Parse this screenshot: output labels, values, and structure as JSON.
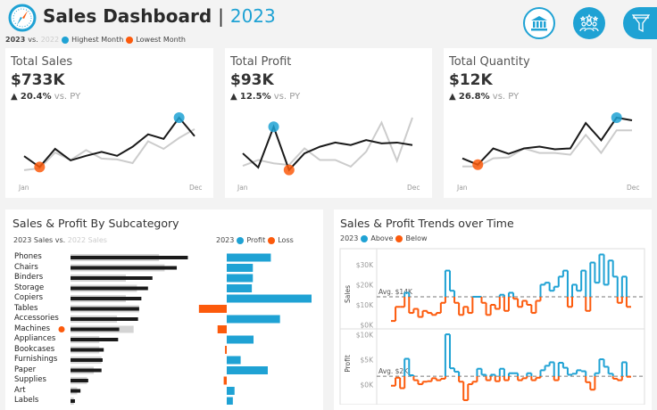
{
  "header": {
    "title": "Sales Dashboard",
    "separator": "|",
    "year": "2023"
  },
  "legend": {
    "current": "2023",
    "vs": "vs.",
    "previous": "2022",
    "highest": "Highest Month",
    "lowest": "Lowest Month"
  },
  "colors": {
    "accent": "#1fa2d4",
    "loss": "#fc5a0c",
    "current": "#1a1a1a",
    "previous": "#cccccc"
  },
  "toolbar": {
    "icons": [
      "bank-icon",
      "team-stars-icon",
      "filter-icon"
    ]
  },
  "kpis": [
    {
      "title": "Total Sales",
      "value": "$733K",
      "delta": "20.4%",
      "vs": "vs. PY",
      "x_start": "Jan",
      "x_end": "Dec",
      "current": [
        73,
        37,
        97,
        59,
        74,
        87,
        74,
        104,
        145,
        130,
        200,
        139
      ],
      "previous": [
        27,
        33,
        85,
        60,
        93,
        65,
        62,
        50,
        122,
        97,
        133,
        162
      ],
      "high_month": 10,
      "low_month": 1
    },
    {
      "title": "Total Profit",
      "value": "$93K",
      "delta": "12.5%",
      "vs": "vs. PY",
      "x_start": "Jan",
      "x_end": "Dec",
      "current": [
        30,
        13,
        62,
        10,
        30,
        38,
        43,
        40,
        46,
        42,
        43,
        40
      ],
      "previous": [
        15,
        22,
        18,
        16,
        36,
        22,
        22,
        14,
        32,
        67,
        21,
        73
      ],
      "high_month": 2,
      "low_month": 3
    },
    {
      "title": "Total Quantity",
      "value": "$12K",
      "delta": "26.8%",
      "vs": "vs. PY",
      "x_start": "Jan",
      "x_end": "Dec",
      "current": [
        22,
        15,
        33,
        27,
        33,
        35,
        32,
        33,
        61,
        42,
        67,
        64
      ],
      "previous": [
        13,
        13,
        22,
        23,
        33,
        28,
        28,
        26,
        48,
        28,
        53,
        53
      ],
      "high_month": 10,
      "low_month": 1
    }
  ],
  "subcategory": {
    "title": "Sales & Profit By Subcategory",
    "sales_legend": {
      "current": "2023 Sales",
      "vs": "vs.",
      "previous": "2022 Sales"
    },
    "profit_legend": {
      "year": "2023",
      "profit": "Profit",
      "loss": "Loss"
    },
    "rows": [
      {
        "name": "Phones",
        "sales_2023": 106,
        "sales_2022": 80,
        "profit": 13
      },
      {
        "name": "Chairs",
        "sales_2023": 96,
        "sales_2022": 85,
        "profit": 7.7
      },
      {
        "name": "Binders",
        "sales_2023": 74,
        "sales_2022": 50,
        "profit": 7.7
      },
      {
        "name": "Storage",
        "sales_2023": 70,
        "sales_2022": 60,
        "profit": 7.4
      },
      {
        "name": "Copiers",
        "sales_2023": 64,
        "sales_2022": 50,
        "profit": 25
      },
      {
        "name": "Tables",
        "sales_2023": 62,
        "sales_2022": 62,
        "profit": -8.2
      },
      {
        "name": "Accessories",
        "sales_2023": 61,
        "sales_2022": 42,
        "profit": 15.7
      },
      {
        "name": "Machines",
        "sales_2023": 44,
        "sales_2022": 57,
        "profit": -2.7,
        "flag": true
      },
      {
        "name": "Appliances",
        "sales_2023": 43,
        "sales_2022": 26,
        "profit": 7.9
      },
      {
        "name": "Bookcases",
        "sales_2023": 30,
        "sales_2022": 26,
        "profit": -0.5
      },
      {
        "name": "Furnishings",
        "sales_2023": 29,
        "sales_2022": 28,
        "profit": 4.1
      },
      {
        "name": "Paper",
        "sales_2023": 28,
        "sales_2022": 21,
        "profit": 12.1
      },
      {
        "name": "Supplies",
        "sales_2023": 16,
        "sales_2022": 15,
        "profit": -0.9
      },
      {
        "name": "Art",
        "sales_2023": 9,
        "sales_2022": 6,
        "profit": 2.3
      },
      {
        "name": "Labels",
        "sales_2023": 4,
        "sales_2022": 3,
        "profit": 1.8
      }
    ]
  },
  "trends": {
    "title": "Sales & Profit Trends over Time",
    "legend": {
      "year": "2023",
      "above": "Above",
      "below": "Below"
    },
    "sales": {
      "axis_label": "Sales",
      "ticks": [
        "$0K",
        "$10K",
        "$20K",
        "$30K"
      ],
      "tick_values": [
        0,
        10,
        20,
        30
      ],
      "avg_label": "Avg. $14K",
      "avg": 14,
      "values": [
        2,
        9,
        9,
        16,
        6,
        8,
        4,
        7,
        6,
        5,
        6,
        11,
        27,
        17,
        11,
        5,
        9,
        6,
        14,
        14,
        11,
        5,
        10,
        8,
        15,
        7,
        16,
        13,
        9,
        12,
        10,
        6,
        12,
        20,
        21,
        17,
        19,
        24,
        27,
        9,
        20,
        17,
        27,
        7,
        31,
        21,
        35,
        20,
        32,
        24,
        11,
        24,
        9
      ]
    },
    "profit": {
      "axis_label": "Profit",
      "ticks": [
        "$0K",
        "$5K",
        "$10K"
      ],
      "tick_values": [
        0,
        5,
        10
      ],
      "avg_label": "Avg. $2K",
      "avg": 1.7,
      "values": [
        -0.2,
        1.4,
        -0.7,
        5.2,
        1.9,
        0.9,
        0.1,
        0.6,
        0.7,
        1.3,
        0.9,
        1.2,
        10.1,
        3.3,
        2.6,
        0.6,
        -3.1,
        0.1,
        0.6,
        3.2,
        2.0,
        0.9,
        2.0,
        0.7,
        3.2,
        0.9,
        2.3,
        2.3,
        0.9,
        1.3,
        2.3,
        0.9,
        1.4,
        2.9,
        3.8,
        4.5,
        0.9,
        4.4,
        3.4,
        2.0,
        2.2,
        2.9,
        2.7,
        0.5,
        -1.0,
        2.3,
        5.1,
        3.6,
        2.2,
        1.2,
        0.9,
        4.5,
        1.6
      ]
    }
  }
}
